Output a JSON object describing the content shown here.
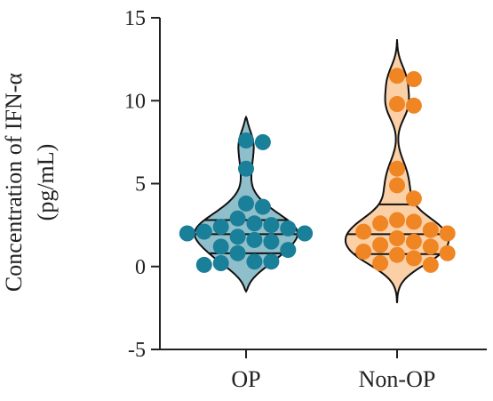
{
  "chart_data": {
    "type": "violin",
    "categories": [
      "OP",
      "Non-OP"
    ],
    "ylabel_line1": "Concentration of IFN-α",
    "ylabel_line2": "(pg/mL)",
    "ylim": [
      -5,
      15
    ],
    "yticks": [
      15,
      10,
      5,
      0,
      -5
    ],
    "ytick_labels": [
      "15",
      "10",
      "5",
      "0",
      "-5"
    ],
    "grid": false,
    "series": [
      {
        "category": "OP",
        "color": "#1a7f98",
        "fill": "#90bfcc",
        "range": [
          -1.5,
          9.0
        ],
        "quartiles": [
          0.8,
          1.95,
          2.8
        ],
        "points": [
          7.6,
          7.5,
          5.9,
          3.8,
          3.6,
          2.9,
          2.6,
          2.5,
          2.4,
          2.3,
          2.1,
          2.0,
          2.0,
          1.8,
          1.6,
          1.5,
          1.2,
          1.0,
          0.8,
          0.3,
          0.3,
          0.2,
          0.1
        ]
      },
      {
        "category": "Non-OP",
        "color": "#f08524",
        "fill": "#fbd0a6",
        "range": [
          -2.2,
          13.7
        ],
        "quartiles": [
          0.75,
          1.95,
          3.75
        ],
        "points": [
          11.5,
          11.3,
          9.8,
          9.7,
          5.9,
          4.9,
          4.1,
          2.8,
          2.7,
          2.6,
          2.2,
          2.1,
          2.0,
          1.7,
          1.5,
          1.3,
          1.2,
          0.9,
          0.8,
          0.7,
          0.5,
          0.2,
          0.1
        ]
      }
    ]
  }
}
